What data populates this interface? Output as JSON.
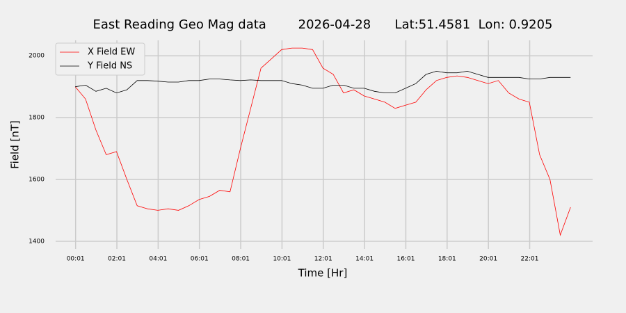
{
  "chart_data": {
    "type": "line",
    "title": "East Reading Geo Mag data        2026-04-28      Lat:51.4581  Lon: 0.9205",
    "x_label": "Time  [Hr]",
    "y_label": "Field  [nT]",
    "x": [
      0,
      30,
      60,
      90,
      120,
      150,
      180,
      210,
      240,
      270,
      300,
      330,
      360,
      390,
      420,
      450,
      480,
      510,
      540,
      570,
      600,
      630,
      660,
      690,
      720,
      750,
      780,
      810,
      840,
      870,
      900,
      930,
      960,
      990,
      1020,
      1050,
      1080,
      1110,
      1140,
      1170,
      1200,
      1230,
      1260,
      1290,
      1320,
      1350,
      1380,
      1410,
      1440
    ],
    "series": [
      {
        "name": "X Field EW",
        "color": "#ff0000",
        "values": [
          1900,
          1860,
          1760,
          1680,
          1690,
          1600,
          1515,
          1505,
          1500,
          1505,
          1500,
          1515,
          1535,
          1545,
          1565,
          1560,
          1700,
          1830,
          1960,
          1990,
          2020,
          2025,
          2025,
          2020,
          1960,
          1940,
          1880,
          1890,
          1870,
          1860,
          1850,
          1830,
          1840,
          1850,
          1890,
          1920,
          1930,
          1935,
          1930,
          1920,
          1910,
          1920,
          1880,
          1860,
          1850,
          1680,
          1600,
          1420,
          1510
        ]
      },
      {
        "name": "Y Field NS",
        "color": "#000000",
        "values": [
          1900,
          1905,
          1885,
          1895,
          1880,
          1890,
          1920,
          1920,
          1918,
          1915,
          1915,
          1920,
          1920,
          1925,
          1925,
          1922,
          1920,
          1922,
          1920,
          1920,
          1920,
          1910,
          1905,
          1895,
          1895,
          1905,
          1905,
          1895,
          1895,
          1885,
          1880,
          1880,
          1895,
          1910,
          1940,
          1950,
          1945,
          1945,
          1950,
          1940,
          1930,
          1930,
          1930,
          1930,
          1925,
          1925,
          1930,
          1930,
          1930
        ]
      }
    ],
    "xlim": [
      -57,
      1504
    ],
    "ylim": [
      1375,
      2050
    ],
    "xticks": [
      {
        "value": 1,
        "label": "00:01"
      },
      {
        "value": 121,
        "label": "02:01"
      },
      {
        "value": 241,
        "label": "04:01"
      },
      {
        "value": 361,
        "label": "06:01"
      },
      {
        "value": 481,
        "label": "08:01"
      },
      {
        "value": 601,
        "label": "10:01"
      },
      {
        "value": 721,
        "label": "12:01"
      },
      {
        "value": 841,
        "label": "14:01"
      },
      {
        "value": 961,
        "label": "16:01"
      },
      {
        "value": 1081,
        "label": "18:01"
      },
      {
        "value": 1201,
        "label": "20:01"
      },
      {
        "value": 1321,
        "label": "22:01"
      }
    ],
    "yticks": [
      1400,
      1600,
      1800,
      2000
    ],
    "grid": true,
    "legend": "upper left"
  }
}
